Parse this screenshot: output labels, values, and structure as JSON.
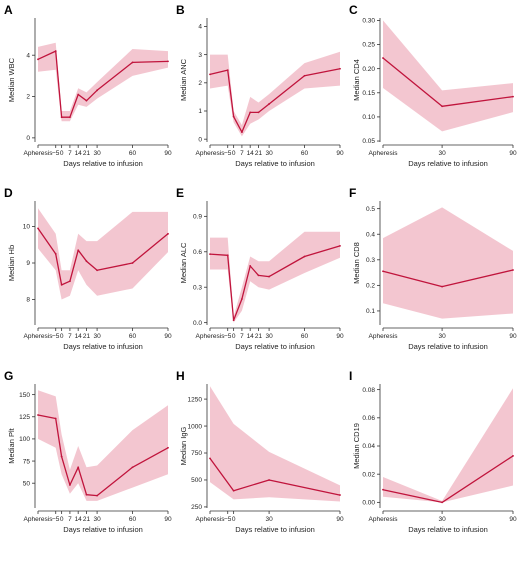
{
  "colors": {
    "line": "#c0143c",
    "band": "#f0b8c4",
    "axis": "#333333"
  },
  "chart_data": [
    {
      "panel": "A",
      "type": "line",
      "ylabel": "Median WBC",
      "xlabel": "Days relative to infusion",
      "xlim": [
        -20,
        90
      ],
      "ylim": [
        -0.2,
        5.8
      ],
      "x_ticks": [
        -20,
        -5,
        0,
        7,
        14,
        21,
        30,
        60,
        90
      ],
      "x_tick_labels": [
        "Apheresis",
        "−5",
        "0",
        "7",
        "14",
        "21",
        "30",
        "60",
        "90"
      ],
      "y_ticks": [
        0,
        2,
        4
      ],
      "y_tick_labels": [
        "0",
        "2",
        "4"
      ],
      "series": [
        {
          "x": [
            -20,
            -5,
            0,
            7,
            14,
            21,
            30,
            60,
            90
          ],
          "y": [
            3.8,
            4.2,
            1.0,
            1.0,
            2.1,
            1.8,
            2.3,
            3.65,
            3.7
          ],
          "lower": [
            3.2,
            3.3,
            0.8,
            0.8,
            1.6,
            1.5,
            1.9,
            3.0,
            3.4
          ],
          "upper": [
            4.4,
            4.6,
            1.3,
            1.3,
            2.4,
            2.2,
            2.7,
            4.3,
            4.2
          ]
        }
      ]
    },
    {
      "panel": "B",
      "type": "line",
      "ylabel": "Median ANC",
      "xlabel": "Days relative to infusion",
      "xlim": [
        -20,
        90
      ],
      "ylim": [
        -0.1,
        4.3
      ],
      "x_ticks": [
        -20,
        -5,
        0,
        7,
        14,
        21,
        30,
        60,
        90
      ],
      "x_tick_labels": [
        "Apheresis",
        "−5",
        "0",
        "7",
        "14",
        "21",
        "30",
        "60",
        "90"
      ],
      "y_ticks": [
        0,
        1,
        2,
        3,
        4
      ],
      "y_tick_labels": [
        "0",
        "1",
        "2",
        "3",
        "4"
      ],
      "series": [
        {
          "x": [
            -20,
            -5,
            0,
            7,
            14,
            21,
            30,
            60,
            90
          ],
          "y": [
            2.3,
            2.45,
            0.8,
            0.25,
            0.95,
            0.95,
            1.25,
            2.25,
            2.5
          ],
          "lower": [
            1.8,
            1.9,
            0.6,
            0.1,
            0.55,
            0.7,
            1.0,
            1.8,
            1.9
          ],
          "upper": [
            3.0,
            3.0,
            1.0,
            0.5,
            1.5,
            1.3,
            1.6,
            2.7,
            3.1
          ]
        }
      ]
    },
    {
      "panel": "C",
      "type": "line",
      "ylabel": "Median CD4",
      "xlabel": "Days relative to infusion",
      "xlim": [
        -20,
        90
      ],
      "ylim": [
        0.048,
        0.305
      ],
      "x_ticks": [
        -20,
        30,
        90
      ],
      "x_tick_labels": [
        "Apheresis",
        "30",
        "90"
      ],
      "y_ticks": [
        0.05,
        0.1,
        0.15,
        0.2,
        0.25,
        0.3
      ],
      "y_tick_labels": [
        "0.05",
        "0.10",
        "0.15",
        "0.20",
        "0.25",
        "0.30"
      ],
      "series": [
        {
          "x": [
            -20,
            30,
            90
          ],
          "y": [
            0.222,
            0.122,
            0.142
          ],
          "lower": [
            0.16,
            0.07,
            0.11
          ],
          "upper": [
            0.3,
            0.155,
            0.17
          ]
        }
      ]
    },
    {
      "panel": "D",
      "type": "line",
      "ylabel": "Median Hb",
      "xlabel": "Days relative to infusion",
      "xlim": [
        -20,
        90
      ],
      "ylim": [
        7.3,
        10.7
      ],
      "x_ticks": [
        -20,
        -5,
        0,
        7,
        14,
        21,
        30,
        60,
        90
      ],
      "x_tick_labels": [
        "Apheresis",
        "−5",
        "0",
        "7",
        "14",
        "21",
        "30",
        "60",
        "90"
      ],
      "y_ticks": [
        8,
        9,
        10
      ],
      "y_tick_labels": [
        "8",
        "9",
        "10"
      ],
      "series": [
        {
          "x": [
            -20,
            -5,
            0,
            7,
            14,
            21,
            30,
            60,
            90
          ],
          "y": [
            9.95,
            9.25,
            8.4,
            8.5,
            9.35,
            9.05,
            8.8,
            9.0,
            9.8
          ],
          "lower": [
            9.4,
            8.8,
            8.0,
            8.1,
            8.8,
            8.4,
            8.1,
            8.3,
            9.3
          ],
          "upper": [
            10.5,
            9.8,
            8.8,
            8.8,
            9.8,
            9.6,
            9.6,
            10.4,
            10.4
          ]
        }
      ]
    },
    {
      "panel": "E",
      "type": "line",
      "ylabel": "Median ALC",
      "xlabel": "Days relative to infusion",
      "xlim": [
        -20,
        90
      ],
      "ylim": [
        -0.02,
        1.03
      ],
      "x_ticks": [
        -20,
        -5,
        0,
        7,
        14,
        21,
        30,
        60,
        90
      ],
      "x_tick_labels": [
        "Apheresis",
        "−5",
        "0",
        "7",
        "14",
        "21",
        "30",
        "60",
        "90"
      ],
      "y_ticks": [
        0.0,
        0.3,
        0.6,
        0.9
      ],
      "y_tick_labels": [
        "0.0",
        "0.3",
        "0.6",
        "0.9"
      ],
      "series": [
        {
          "x": [
            -20,
            -5,
            0,
            7,
            14,
            21,
            30,
            60,
            90
          ],
          "y": [
            0.58,
            0.57,
            0.02,
            0.2,
            0.48,
            0.4,
            0.39,
            0.56,
            0.65
          ],
          "lower": [
            0.45,
            0.45,
            0.0,
            0.1,
            0.35,
            0.3,
            0.28,
            0.42,
            0.55
          ],
          "upper": [
            0.72,
            0.72,
            0.05,
            0.3,
            0.56,
            0.52,
            0.52,
            0.77,
            0.77
          ]
        }
      ]
    },
    {
      "panel": "F",
      "type": "line",
      "ylabel": "Median CD8",
      "xlabel": "Days relative to infusion",
      "xlim": [
        -20,
        90
      ],
      "ylim": [
        0.045,
        0.53
      ],
      "x_ticks": [
        -20,
        30,
        90
      ],
      "x_tick_labels": [
        "Apheresis",
        "30",
        "90"
      ],
      "y_ticks": [
        0.1,
        0.2,
        0.3,
        0.4,
        0.5
      ],
      "y_tick_labels": [
        "0.1",
        "0.2",
        "0.3",
        "0.4",
        "0.5"
      ],
      "series": [
        {
          "x": [
            -20,
            30,
            90
          ],
          "y": [
            0.255,
            0.195,
            0.26
          ],
          "lower": [
            0.13,
            0.07,
            0.09
          ],
          "upper": [
            0.385,
            0.505,
            0.335
          ]
        }
      ]
    },
    {
      "panel": "G",
      "type": "line",
      "ylabel": "Median Plt",
      "xlabel": "Days relative to infusion",
      "xlim": [
        -20,
        90
      ],
      "ylim": [
        22,
        162
      ],
      "x_ticks": [
        -20,
        -5,
        0,
        7,
        14,
        21,
        30,
        60,
        90
      ],
      "x_tick_labels": [
        "Apheresis",
        "−5",
        "0",
        "7",
        "14",
        "21",
        "30",
        "60",
        "90"
      ],
      "y_ticks": [
        50,
        75,
        100,
        125,
        150
      ],
      "y_tick_labels": [
        "50",
        "75",
        "100",
        "125",
        "150"
      ],
      "series": [
        {
          "x": [
            -20,
            -5,
            0,
            7,
            14,
            21,
            30,
            60,
            90
          ],
          "y": [
            127,
            123,
            80,
            48,
            68,
            37,
            36,
            68,
            90
          ],
          "lower": [
            100,
            90,
            60,
            38,
            50,
            30,
            30,
            45,
            60
          ],
          "upper": [
            155,
            148,
            105,
            65,
            92,
            68,
            70,
            110,
            138
          ]
        }
      ]
    },
    {
      "panel": "H",
      "type": "line",
      "ylabel": "Median IgG",
      "xlabel": "Days relative to infusion",
      "xlim": [
        -20,
        90
      ],
      "ylim": [
        240,
        1390
      ],
      "x_ticks": [
        -20,
        -5,
        0,
        30,
        90
      ],
      "x_tick_labels": [
        "Apheresis",
        "−5",
        "0",
        "30",
        "90"
      ],
      "y_ticks": [
        250,
        500,
        750,
        1000,
        1250
      ],
      "y_tick_labels": [
        "250",
        "500",
        "750",
        "1000",
        "1250"
      ],
      "series": [
        {
          "x": [
            -20,
            0,
            30,
            90
          ],
          "y": [
            700,
            400,
            500,
            360
          ],
          "lower": [
            480,
            320,
            340,
            300
          ],
          "upper": [
            1370,
            1020,
            760,
            450
          ]
        }
      ]
    },
    {
      "panel": "I",
      "type": "line",
      "ylabel": "Median CD19",
      "xlabel": "Days relative to infusion",
      "xlim": [
        -20,
        90
      ],
      "ylim": [
        -0.004,
        0.084
      ],
      "x_ticks": [
        -20,
        30,
        90
      ],
      "x_tick_labels": [
        "Apheresis",
        "30",
        "90"
      ],
      "y_ticks": [
        0.0,
        0.02,
        0.04,
        0.06,
        0.08
      ],
      "y_tick_labels": [
        "0.00",
        "0.02",
        "0.04",
        "0.06",
        "0.08"
      ],
      "series": [
        {
          "x": [
            -20,
            30,
            90
          ],
          "y": [
            0.009,
            0.0,
            0.033
          ],
          "lower": [
            0.004,
            0.0,
            0.012
          ],
          "upper": [
            0.018,
            0.001,
            0.081
          ]
        }
      ]
    }
  ]
}
